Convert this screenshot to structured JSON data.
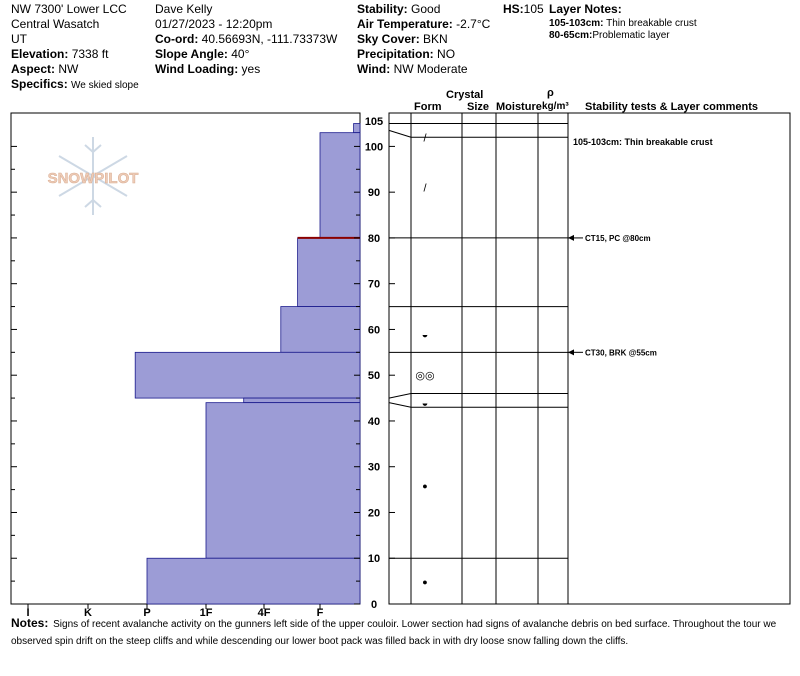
{
  "header": {
    "col1": {
      "location": "NW 7300' Lower LCC",
      "range": "Central Wasatch",
      "state": "UT",
      "elevation_label": "Elevation:",
      "elevation": "7338 ft",
      "aspect_label": "Aspect:",
      "aspect": "NW",
      "specifics_label": "Specifics:",
      "specifics": "We skied slope"
    },
    "col2": {
      "observer": "Dave Kelly",
      "datetime": "01/27/2023 - 12:20pm",
      "coord_label": "Co-ord:",
      "coord": "40.56693N, -111.73373W",
      "slope_label": "Slope Angle:",
      "slope": "40°",
      "wind_loading_label": "Wind Loading:",
      "wind_loading": "yes"
    },
    "col3": {
      "stability_label": "Stability:",
      "stability": "Good",
      "air_temp_label": "Air Temperature:",
      "air_temp": "-2.7°C",
      "sky_label": "Sky Cover:",
      "sky": "BKN",
      "precip_label": "Precipitation:",
      "precip": "NO",
      "wind_label": "Wind:",
      "wind": "NW Moderate"
    },
    "hs_label": "HS:",
    "hs": "105",
    "layer_notes_title": "Layer Notes:",
    "layer_notes": [
      {
        "range": "105-103cm:",
        "text": "Thin breakable crust"
      },
      {
        "range": "80-65cm:",
        "text": "Problematic layer"
      }
    ]
  },
  "watermark": "SNOWPILOT",
  "columns": {
    "crystal": "Crystal",
    "form": "Form",
    "size": "Size",
    "moisture": "Moisture",
    "rho": "ρ",
    "density_unit": "kg/m³",
    "stability": "Stability tests & Layer comments"
  },
  "chart_data": {
    "type": "bar",
    "orientation": "horizontal",
    "x_categories": [
      "I",
      "K",
      "P",
      "1F",
      "4F",
      "F"
    ],
    "y_ticks": [
      0,
      10,
      20,
      30,
      40,
      50,
      60,
      70,
      80,
      90,
      100,
      105
    ],
    "ylim": [
      0,
      105
    ],
    "xlabel": "",
    "ylabel": "",
    "hardness_layers": [
      {
        "bottom": 103,
        "top": 105,
        "hardness_index": 5.6
      },
      {
        "bottom": 80,
        "top": 103,
        "hardness_index": 5.0
      },
      {
        "bottom": 65,
        "top": 80,
        "hardness_index": 4.6
      },
      {
        "bottom": 55,
        "top": 65,
        "hardness_index": 4.3
      },
      {
        "bottom": 45,
        "top": 55,
        "hardness_index": 1.8
      },
      {
        "bottom": 44,
        "top": 45,
        "hardness_index": 3.65
      },
      {
        "bottom": 10,
        "top": 44,
        "hardness_index": 3.0
      },
      {
        "bottom": 0,
        "top": 10,
        "hardness_index": 2.0
      }
    ],
    "layer_boundaries": [
      105,
      102,
      80,
      65,
      55,
      46,
      43,
      10
    ],
    "highlight_boundary": 80,
    "grain_symbols": [
      {
        "depth": 102,
        "symbol": "/"
      },
      {
        "depth": 91,
        "symbol": "/"
      },
      {
        "depth": 59,
        "symbol": "◒"
      },
      {
        "depth": 50,
        "symbol": "◎◎"
      },
      {
        "depth": 44,
        "symbol": "◒"
      },
      {
        "depth": 26,
        "symbol": "●"
      },
      {
        "depth": 5,
        "symbol": "●"
      }
    ],
    "comments": [
      {
        "depth": 101,
        "text": "105-103cm: Thin breakable crust",
        "arrow": false
      },
      {
        "depth": 80,
        "text": "CT15, PC @80cm",
        "arrow": true
      },
      {
        "depth": 55,
        "text": "CT30, BRK @55cm",
        "arrow": true
      }
    ]
  },
  "notes": {
    "label": "Notes:",
    "text": "Signs of recent avalanche activity on the gunners left side of the upper couloir.  Lower section had signs of avalanche debris on bed surface. Throughout the tour we observed spin drift on the steep cliffs and while descending our lower boot pack was filled back in with dry loose snow falling down the cliffs."
  },
  "colors": {
    "bar_fill": "#9c9cd6",
    "bar_stroke": "#1a1a8c",
    "highlight": "#8b0000",
    "watermark": "#e8b79a"
  }
}
